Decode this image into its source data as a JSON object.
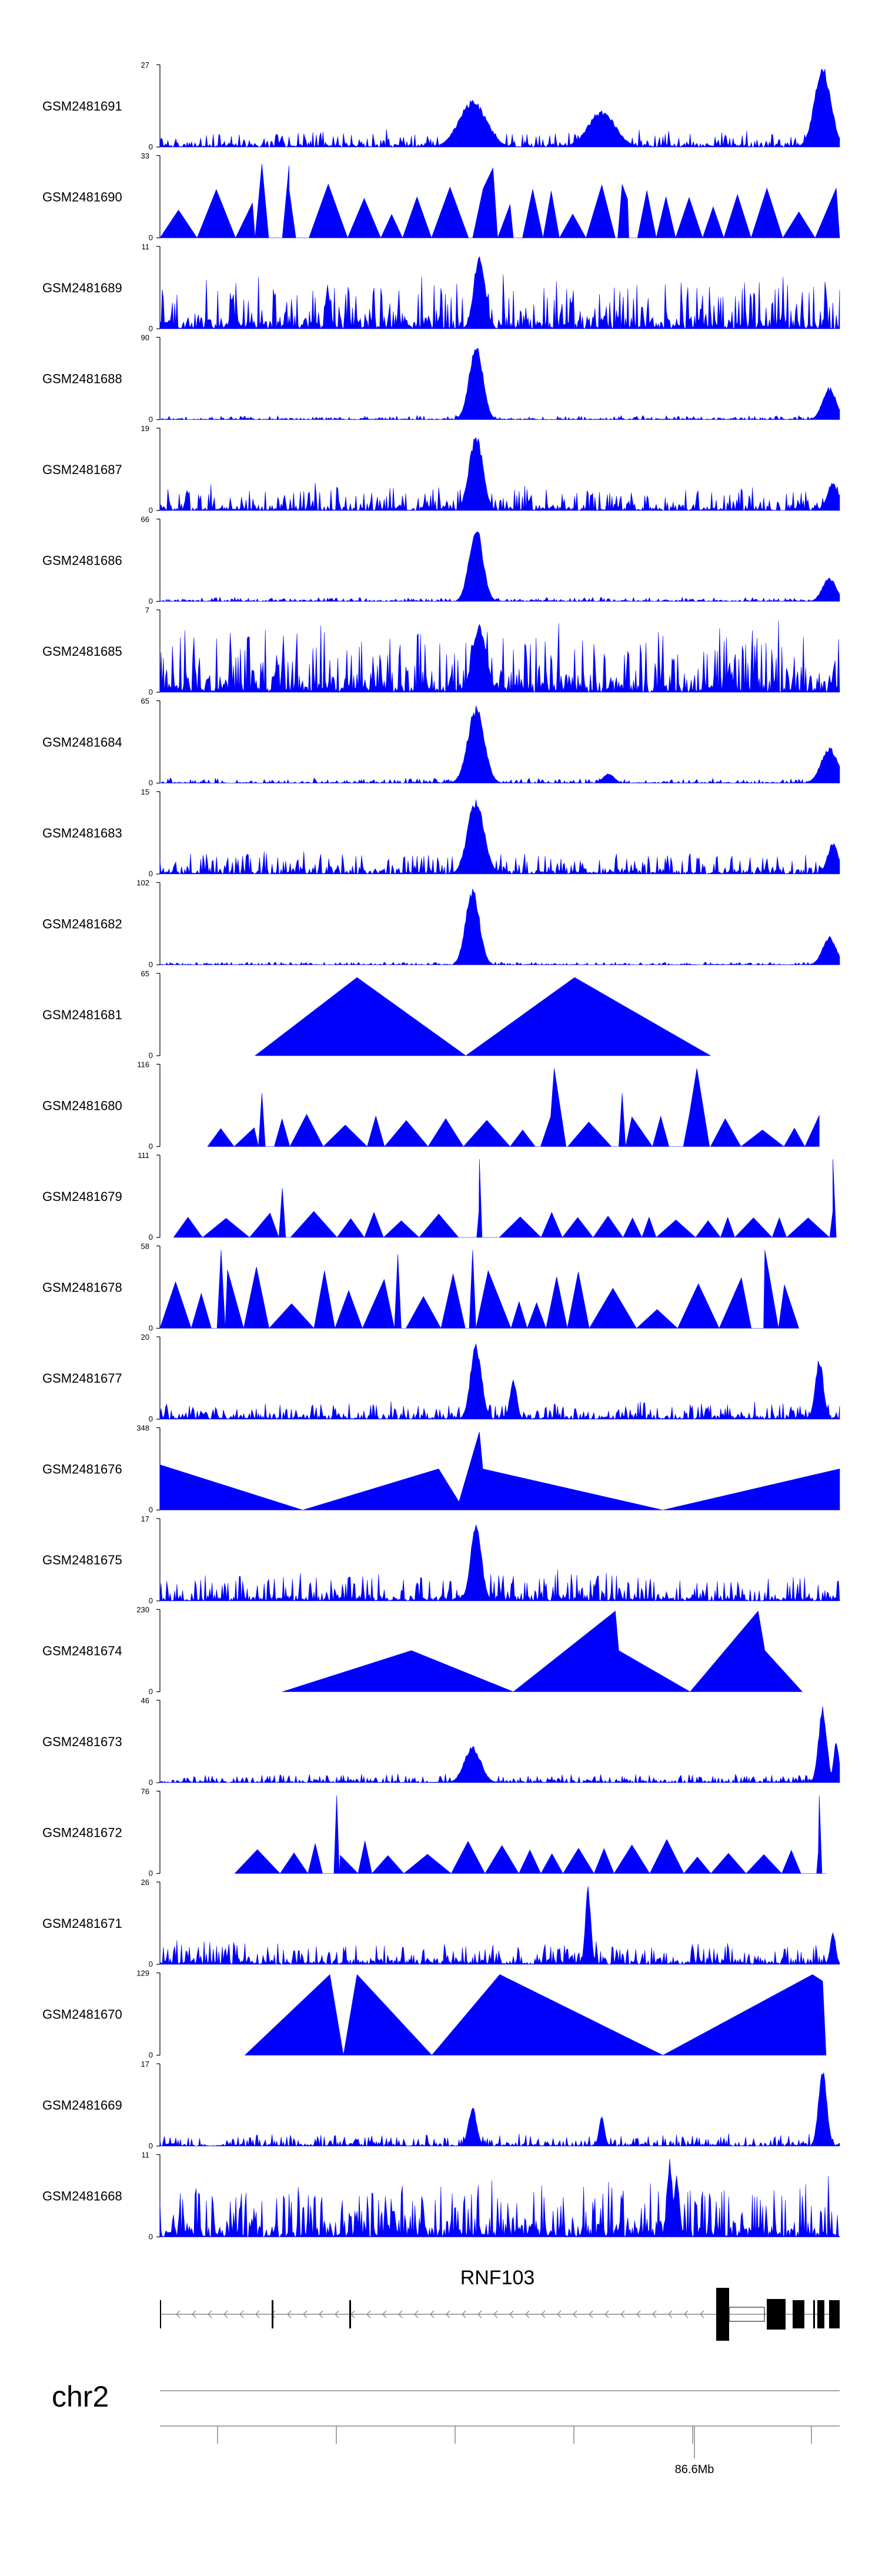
{
  "chart_data": {
    "type": "area",
    "title": "",
    "xlabel": "",
    "ylabel": "",
    "color": "#0000FF",
    "chromosome_label": "chr2",
    "gene_label": "RNF103",
    "axis_tick_label": "86.6Mb",
    "tracks": [
      {
        "name": "GSM2481691",
        "ymax": "27",
        "ymin": "0",
        "style": "noise",
        "ymax_val": 27,
        "base": 0.08,
        "noise": 0.16,
        "peaks": [
          [
            0.46,
            0.58,
            0.02
          ],
          [
            0.65,
            0.45,
            0.02
          ],
          [
            0.975,
            0.99,
            0.012
          ]
        ]
      },
      {
        "name": "GSM2481690",
        "ymax": "33",
        "ymin": "0",
        "style": "tri",
        "ymax_val": 33,
        "base": 0.22,
        "noise": 0.45,
        "peaks": [
          [
            0.15,
            0.9,
            0.01
          ],
          [
            0.19,
            0.88,
            0.01
          ],
          [
            0.49,
            0.85,
            0.03
          ],
          [
            0.68,
            0.65,
            0.01
          ]
        ]
      },
      {
        "name": "GSM2481689",
        "ymax": "11",
        "ymin": "0",
        "style": "noise",
        "ymax_val": 11,
        "base": 0.22,
        "noise": 0.5,
        "peaks": [
          [
            0.47,
            0.95,
            0.008
          ]
        ]
      },
      {
        "name": "GSM2481688",
        "ymax": "90",
        "ymin": "0",
        "style": "noise",
        "ymax_val": 90,
        "base": 0.02,
        "noise": 0.04,
        "peaks": [
          [
            0.465,
            0.95,
            0.01
          ],
          [
            0.985,
            0.4,
            0.01
          ]
        ]
      },
      {
        "name": "GSM2481687",
        "ymax": "19",
        "ymin": "0",
        "style": "noise",
        "ymax_val": 19,
        "base": 0.1,
        "noise": 0.25,
        "peaks": [
          [
            0.465,
            0.95,
            0.01
          ],
          [
            0.99,
            0.35,
            0.008
          ]
        ]
      },
      {
        "name": "GSM2481686",
        "ymax": "66",
        "ymin": "0",
        "style": "noise",
        "ymax_val": 66,
        "base": 0.02,
        "noise": 0.04,
        "peaks": [
          [
            0.465,
            0.95,
            0.01
          ],
          [
            0.985,
            0.3,
            0.01
          ]
        ]
      },
      {
        "name": "GSM2481685",
        "ymax": "7",
        "ymin": "0",
        "style": "noise",
        "ymax_val": 7,
        "base": 0.3,
        "noise": 0.65,
        "peaks": [
          [
            0.47,
            0.85,
            0.01
          ]
        ]
      },
      {
        "name": "GSM2481684",
        "ymax": "65",
        "ymin": "0",
        "style": "noise",
        "ymax_val": 65,
        "base": 0.02,
        "noise": 0.05,
        "peaks": [
          [
            0.465,
            0.95,
            0.012
          ],
          [
            0.66,
            0.12,
            0.008
          ],
          [
            0.985,
            0.45,
            0.012
          ]
        ]
      },
      {
        "name": "GSM2481683",
        "ymax": "15",
        "ymin": "0",
        "style": "noise",
        "ymax_val": 15,
        "base": 0.1,
        "noise": 0.22,
        "peaks": [
          [
            0.465,
            0.95,
            0.012
          ],
          [
            0.99,
            0.38,
            0.008
          ]
        ]
      },
      {
        "name": "GSM2481682",
        "ymax": "102",
        "ymin": "0",
        "style": "noise",
        "ymax_val": 102,
        "base": 0.01,
        "noise": 0.03,
        "peaks": [
          [
            0.46,
            0.95,
            0.01
          ],
          [
            0.985,
            0.35,
            0.01
          ]
        ]
      },
      {
        "name": "GSM2481681",
        "ymax": "65",
        "ymin": "0",
        "style": "tri_fixed",
        "ymax_val": 65,
        "shape": [
          [
            0.14,
            0
          ],
          [
            0.29,
            0.95
          ],
          [
            0.45,
            0
          ],
          [
            0.61,
            0.95
          ],
          [
            0.81,
            0
          ]
        ]
      },
      {
        "name": "GSM2481680",
        "ymax": "116",
        "ymin": "0",
        "style": "tri",
        "ymax_val": 116,
        "base": 0.2,
        "noise": 0.2,
        "range": [
          0.07,
          0.97
        ],
        "peaks": [
          [
            0.15,
            0.65,
            0.005
          ],
          [
            0.58,
            0.95,
            0.02
          ],
          [
            0.68,
            0.65,
            0.005
          ],
          [
            0.79,
            0.95,
            0.02
          ]
        ]
      },
      {
        "name": "GSM2481679",
        "ymax": "111",
        "ymin": "0",
        "style": "tri",
        "ymax_val": 111,
        "base": 0.2,
        "noise": 0.12,
        "range": [
          0.02,
          0.99
        ],
        "peaks": [
          [
            0.18,
            0.6,
            0.005
          ],
          [
            0.47,
            0.95,
            0.004
          ],
          [
            0.99,
            0.95,
            0.005
          ]
        ]
      },
      {
        "name": "GSM2481678",
        "ymax": "58",
        "ymin": "0",
        "style": "tri",
        "ymax_val": 58,
        "base": 0.2,
        "noise": 0.55,
        "range": [
          0.0,
          0.94
        ],
        "peaks": [
          [
            0.09,
            0.95,
            0.006
          ],
          [
            0.35,
            0.9,
            0.005
          ],
          [
            0.46,
            0.95,
            0.005
          ],
          [
            0.89,
            0.95,
            0.02
          ]
        ]
      },
      {
        "name": "GSM2481677",
        "ymax": "20",
        "ymin": "0",
        "style": "noise",
        "ymax_val": 20,
        "base": 0.08,
        "noise": 0.16,
        "peaks": [
          [
            0.465,
            0.95,
            0.008
          ],
          [
            0.52,
            0.5,
            0.005
          ],
          [
            0.97,
            0.75,
            0.006
          ]
        ]
      },
      {
        "name": "GSM2481676",
        "ymax": "348",
        "ymin": "0",
        "style": "tri_fixed",
        "ymax_val": 348,
        "shape": [
          [
            0.0,
            0.55
          ],
          [
            0.21,
            0
          ],
          [
            0.41,
            0.5
          ],
          [
            0.44,
            0.1
          ],
          [
            0.47,
            0.95
          ],
          [
            0.475,
            0.5
          ],
          [
            0.74,
            0
          ],
          [
            1.0,
            0.5
          ],
          [
            1.0,
            0
          ]
        ]
      },
      {
        "name": "GSM2481675",
        "ymax": "17",
        "ymin": "0",
        "style": "noise",
        "ymax_val": 17,
        "base": 0.1,
        "noise": 0.3,
        "peaks": [
          [
            0.465,
            0.95,
            0.008
          ]
        ]
      },
      {
        "name": "GSM2481674",
        "ymax": "230",
        "ymin": "0",
        "style": "tri_fixed",
        "ymax_val": 230,
        "shape": [
          [
            0.18,
            0
          ],
          [
            0.37,
            0.5
          ],
          [
            0.52,
            0
          ],
          [
            0.67,
            0.98
          ],
          [
            0.675,
            0.5
          ],
          [
            0.78,
            0
          ],
          [
            0.88,
            0.98
          ],
          [
            0.89,
            0.5
          ],
          [
            0.945,
            0
          ]
        ]
      },
      {
        "name": "GSM2481673",
        "ymax": "46",
        "ymin": "0",
        "style": "noise",
        "ymax_val": 46,
        "base": 0.04,
        "noise": 0.09,
        "peaks": [
          [
            0.46,
            0.45,
            0.012
          ],
          [
            0.975,
            0.95,
            0.006
          ],
          [
            0.995,
            0.5,
            0.004
          ]
        ]
      },
      {
        "name": "GSM2481672",
        "ymax": "76",
        "ymin": "0",
        "style": "tri",
        "ymax_val": 76,
        "base": 0.2,
        "noise": 0.25,
        "range": [
          0.11,
          0.98
        ],
        "peaks": [
          [
            0.26,
            0.95,
            0.004
          ],
          [
            0.97,
            0.95,
            0.004
          ]
        ]
      },
      {
        "name": "GSM2481671",
        "ymax": "26",
        "ymin": "0",
        "style": "noise",
        "ymax_val": 26,
        "base": 0.1,
        "noise": 0.22,
        "peaks": [
          [
            0.63,
            0.95,
            0.004
          ],
          [
            0.99,
            0.4,
            0.004
          ]
        ]
      },
      {
        "name": "GSM2481670",
        "ymax": "129",
        "ymin": "0",
        "style": "tri_fixed",
        "ymax_val": 129,
        "shape": [
          [
            0.125,
            0
          ],
          [
            0.25,
            0.98
          ],
          [
            0.27,
            0
          ],
          [
            0.29,
            0.98
          ],
          [
            0.4,
            0
          ],
          [
            0.5,
            0.98
          ],
          [
            0.74,
            0
          ],
          [
            0.96,
            0.98
          ],
          [
            0.975,
            0.9
          ],
          [
            0.98,
            0
          ]
        ]
      },
      {
        "name": "GSM2481669",
        "ymax": "17",
        "ymin": "0",
        "style": "noise",
        "ymax_val": 17,
        "base": 0.05,
        "noise": 0.12,
        "peaks": [
          [
            0.46,
            0.5,
            0.006
          ],
          [
            0.65,
            0.4,
            0.004
          ],
          [
            0.975,
            0.95,
            0.006
          ]
        ]
      },
      {
        "name": "GSM2481668",
        "ymax": "11",
        "ymin": "0",
        "style": "noise",
        "ymax_val": 11,
        "base": 0.25,
        "noise": 0.55,
        "peaks": [
          [
            0.75,
            0.95,
            0.004
          ],
          [
            0.76,
            0.8,
            0.004
          ]
        ]
      }
    ]
  }
}
